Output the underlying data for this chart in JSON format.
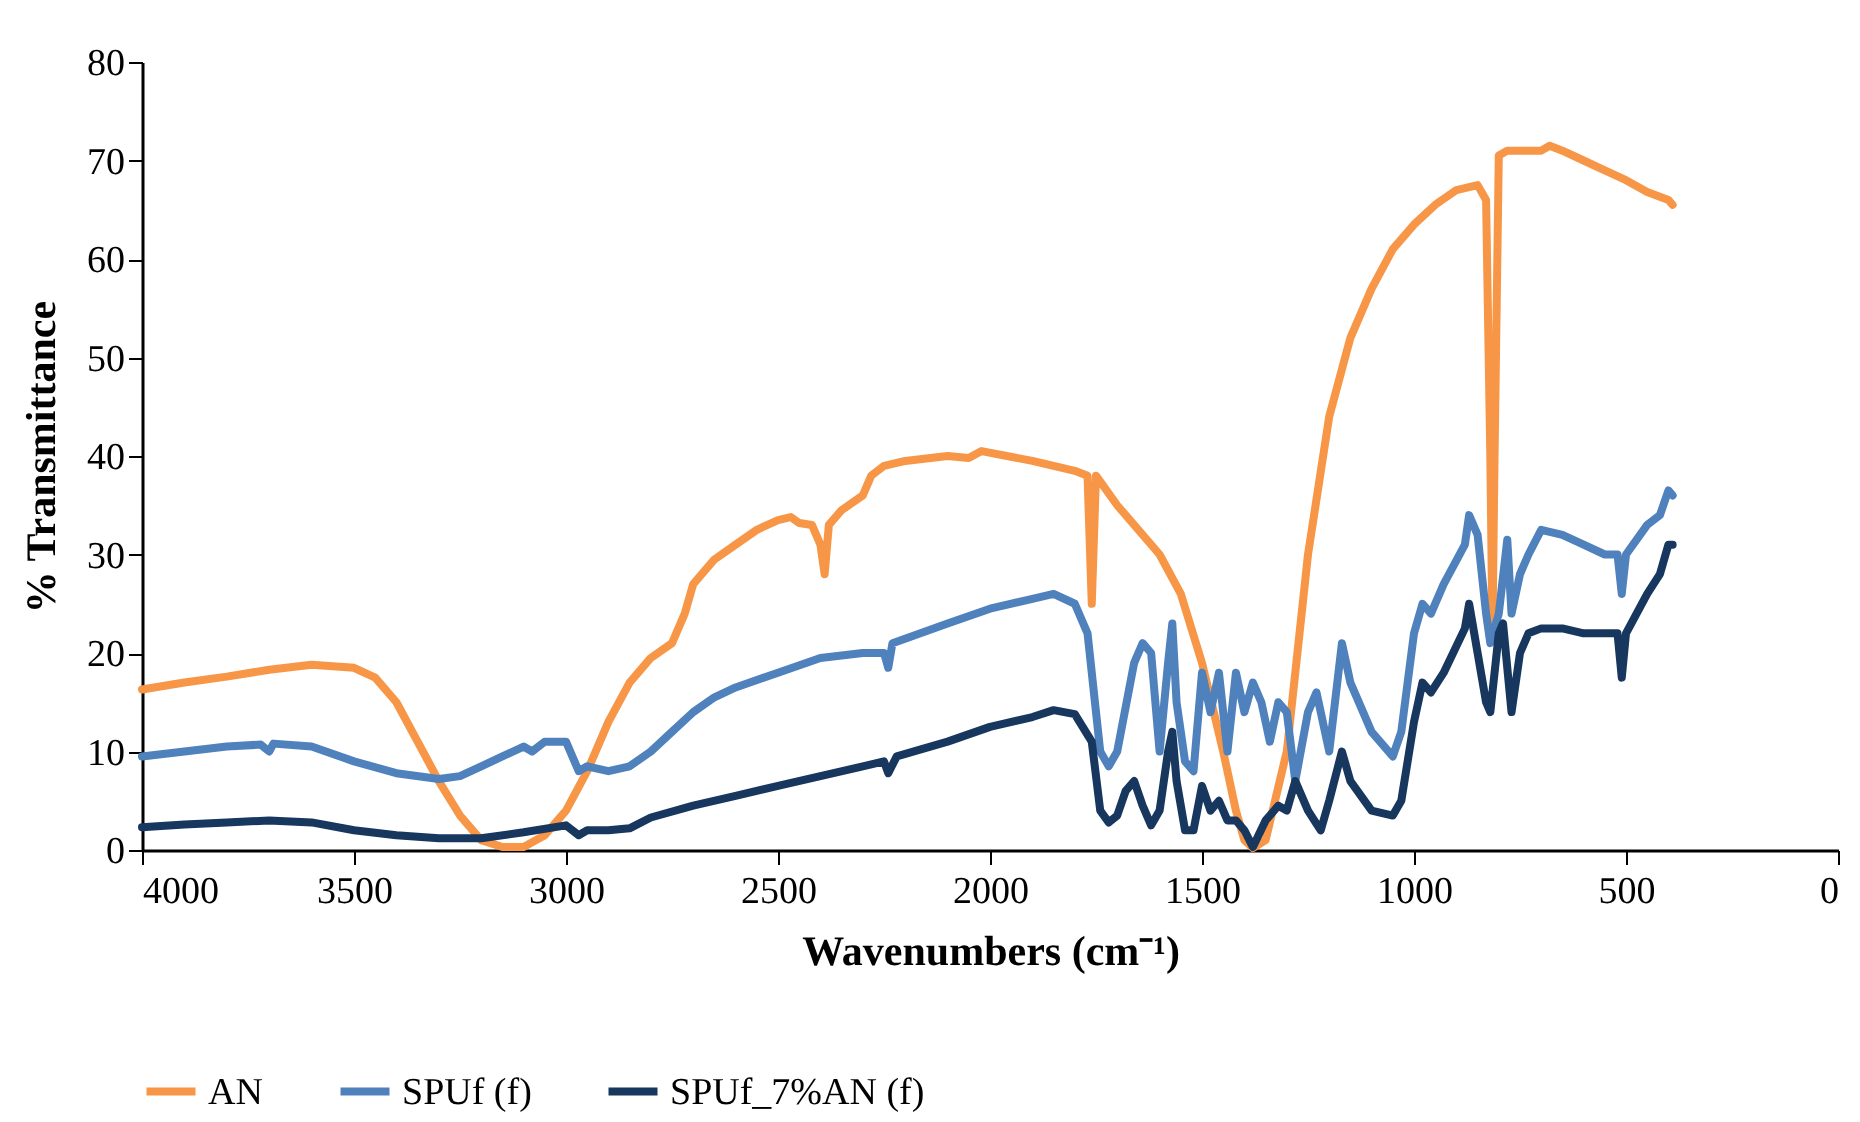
{
  "chart_data": {
    "type": "line",
    "xlabel": "Wavenumbers (cm⁻¹)",
    "ylabel": "% Transmittance",
    "xlim": [
      4000,
      0
    ],
    "xticks": [
      0,
      500,
      1000,
      1500,
      2000,
      2500,
      3000,
      3500,
      4000
    ],
    "ylim": [
      0,
      80
    ],
    "yticks": [
      0,
      10,
      20,
      30,
      40,
      50,
      60,
      70,
      80
    ],
    "grid": false,
    "legend": "bottom",
    "marker": "none",
    "line_style": "solid",
    "series": [
      {
        "name": "AN",
        "color": "#f79646",
        "x": [
          4000,
          3900,
          3800,
          3700,
          3600,
          3500,
          3450,
          3400,
          3350,
          3300,
          3250,
          3200,
          3150,
          3100,
          3050,
          3000,
          2950,
          2900,
          2850,
          2800,
          2750,
          2720,
          2700,
          2650,
          2600,
          2550,
          2500,
          2470,
          2450,
          2420,
          2400,
          2390,
          2380,
          2350,
          2300,
          2280,
          2250,
          2200,
          2100,
          2050,
          2020,
          1900,
          1800,
          1770,
          1760,
          1750,
          1700,
          1600,
          1550,
          1500,
          1450,
          1420,
          1400,
          1380,
          1350,
          1300,
          1250,
          1200,
          1150,
          1100,
          1050,
          1000,
          950,
          900,
          850,
          830,
          820,
          815,
          810,
          800,
          780,
          750,
          700,
          680,
          650,
          600,
          550,
          500,
          450,
          400,
          390
        ],
        "values": [
          16.3,
          17,
          17.6,
          18.3,
          18.8,
          18.5,
          17.5,
          15,
          11,
          7,
          3.5,
          1,
          0.3,
          0.3,
          1.5,
          4,
          8,
          13,
          17,
          19.5,
          21,
          24,
          27,
          29.5,
          31,
          32.5,
          33.5,
          33.8,
          33.2,
          33,
          31,
          28,
          33,
          34.5,
          36,
          38,
          39,
          39.5,
          40,
          39.8,
          40.5,
          39.5,
          38.5,
          38,
          25,
          38,
          35,
          30,
          26,
          19,
          10,
          4,
          1,
          0.2,
          1,
          10,
          30,
          44,
          52,
          57,
          61,
          63.5,
          65.5,
          67,
          67.5,
          66,
          40,
          22,
          40,
          70.5,
          71,
          71,
          71,
          71.5,
          71,
          70,
          69,
          68,
          66.8,
          66,
          65.5
        ]
      },
      {
        "name": "SPUf (f)",
        "color": "#4f81bd",
        "x": [
          4000,
          3900,
          3800,
          3720,
          3700,
          3690,
          3600,
          3500,
          3400,
          3300,
          3250,
          3200,
          3150,
          3100,
          3080,
          3050,
          3000,
          2970,
          2950,
          2900,
          2850,
          2800,
          2750,
          2700,
          2650,
          2600,
          2500,
          2400,
          2300,
          2250,
          2240,
          2230,
          2100,
          2000,
          1900,
          1850,
          1800,
          1770,
          1740,
          1720,
          1700,
          1660,
          1640,
          1620,
          1600,
          1580,
          1570,
          1560,
          1540,
          1520,
          1500,
          1480,
          1460,
          1440,
          1420,
          1400,
          1380,
          1360,
          1340,
          1320,
          1300,
          1280,
          1250,
          1230,
          1200,
          1170,
          1150,
          1100,
          1050,
          1030,
          1000,
          980,
          960,
          930,
          880,
          870,
          850,
          830,
          820,
          800,
          780,
          770,
          750,
          730,
          700,
          650,
          600,
          550,
          520,
          510,
          500,
          450,
          420,
          400,
          390
        ],
        "values": [
          9.5,
          10,
          10.5,
          10.7,
          10,
          10.8,
          10.5,
          9,
          7.8,
          7.2,
          7.5,
          8.5,
          9.5,
          10.5,
          10,
          11,
          11,
          8,
          8.5,
          8,
          8.5,
          10,
          12,
          14,
          15.5,
          16.5,
          18,
          19.5,
          20,
          20,
          18.5,
          21,
          23,
          24.5,
          25.5,
          26,
          25,
          22,
          10,
          8.5,
          10,
          19,
          21,
          20,
          10,
          19,
          23,
          15,
          9,
          8,
          18,
          14,
          18,
          10,
          18,
          14,
          17,
          15,
          11,
          15,
          14,
          7,
          14,
          16,
          10,
          21,
          17,
          12,
          9.5,
          12,
          22,
          25,
          24,
          27,
          31,
          34,
          32,
          24,
          21,
          24,
          31.5,
          24,
          28,
          30,
          32.5,
          32,
          31,
          30,
          30,
          26,
          30,
          33,
          34,
          36.5,
          36
        ]
      },
      {
        "name": "SPUf_7%AN (f)",
        "color": "#17375e",
        "x": [
          4000,
          3900,
          3800,
          3700,
          3600,
          3500,
          3400,
          3300,
          3200,
          3100,
          3000,
          2970,
          2950,
          2900,
          2850,
          2800,
          2700,
          2600,
          2500,
          2400,
          2300,
          2250,
          2240,
          2220,
          2100,
          2000,
          1900,
          1850,
          1800,
          1760,
          1740,
          1720,
          1700,
          1680,
          1660,
          1640,
          1620,
          1600,
          1580,
          1570,
          1560,
          1540,
          1520,
          1500,
          1480,
          1460,
          1440,
          1420,
          1400,
          1380,
          1350,
          1320,
          1300,
          1280,
          1250,
          1220,
          1200,
          1170,
          1150,
          1100,
          1050,
          1030,
          1000,
          980,
          960,
          930,
          880,
          870,
          850,
          830,
          820,
          800,
          790,
          770,
          750,
          730,
          700,
          650,
          600,
          550,
          520,
          510,
          500,
          450,
          420,
          400,
          390
        ],
        "values": [
          2.3,
          2.6,
          2.8,
          3,
          2.8,
          2,
          1.5,
          1.2,
          1.2,
          1.8,
          2.5,
          1.5,
          2,
          2,
          2.2,
          3.3,
          4.5,
          5.5,
          6.5,
          7.5,
          8.5,
          9,
          7.8,
          9.5,
          11,
          12.5,
          13.5,
          14.2,
          13.8,
          11,
          4,
          2.8,
          3.5,
          6,
          7,
          4.5,
          2.5,
          4,
          10,
          12,
          7,
          2,
          2,
          6.5,
          4,
          5,
          3,
          3,
          2,
          0.3,
          3,
          4.5,
          4,
          7,
          4,
          2,
          5,
          10,
          7,
          4,
          3.5,
          5,
          13,
          17,
          16,
          18,
          22.5,
          25,
          20,
          15,
          14,
          22,
          23,
          14,
          20,
          22,
          22.5,
          22.5,
          22,
          22,
          22,
          17.5,
          22,
          26,
          28,
          31,
          31
        ]
      }
    ]
  }
}
